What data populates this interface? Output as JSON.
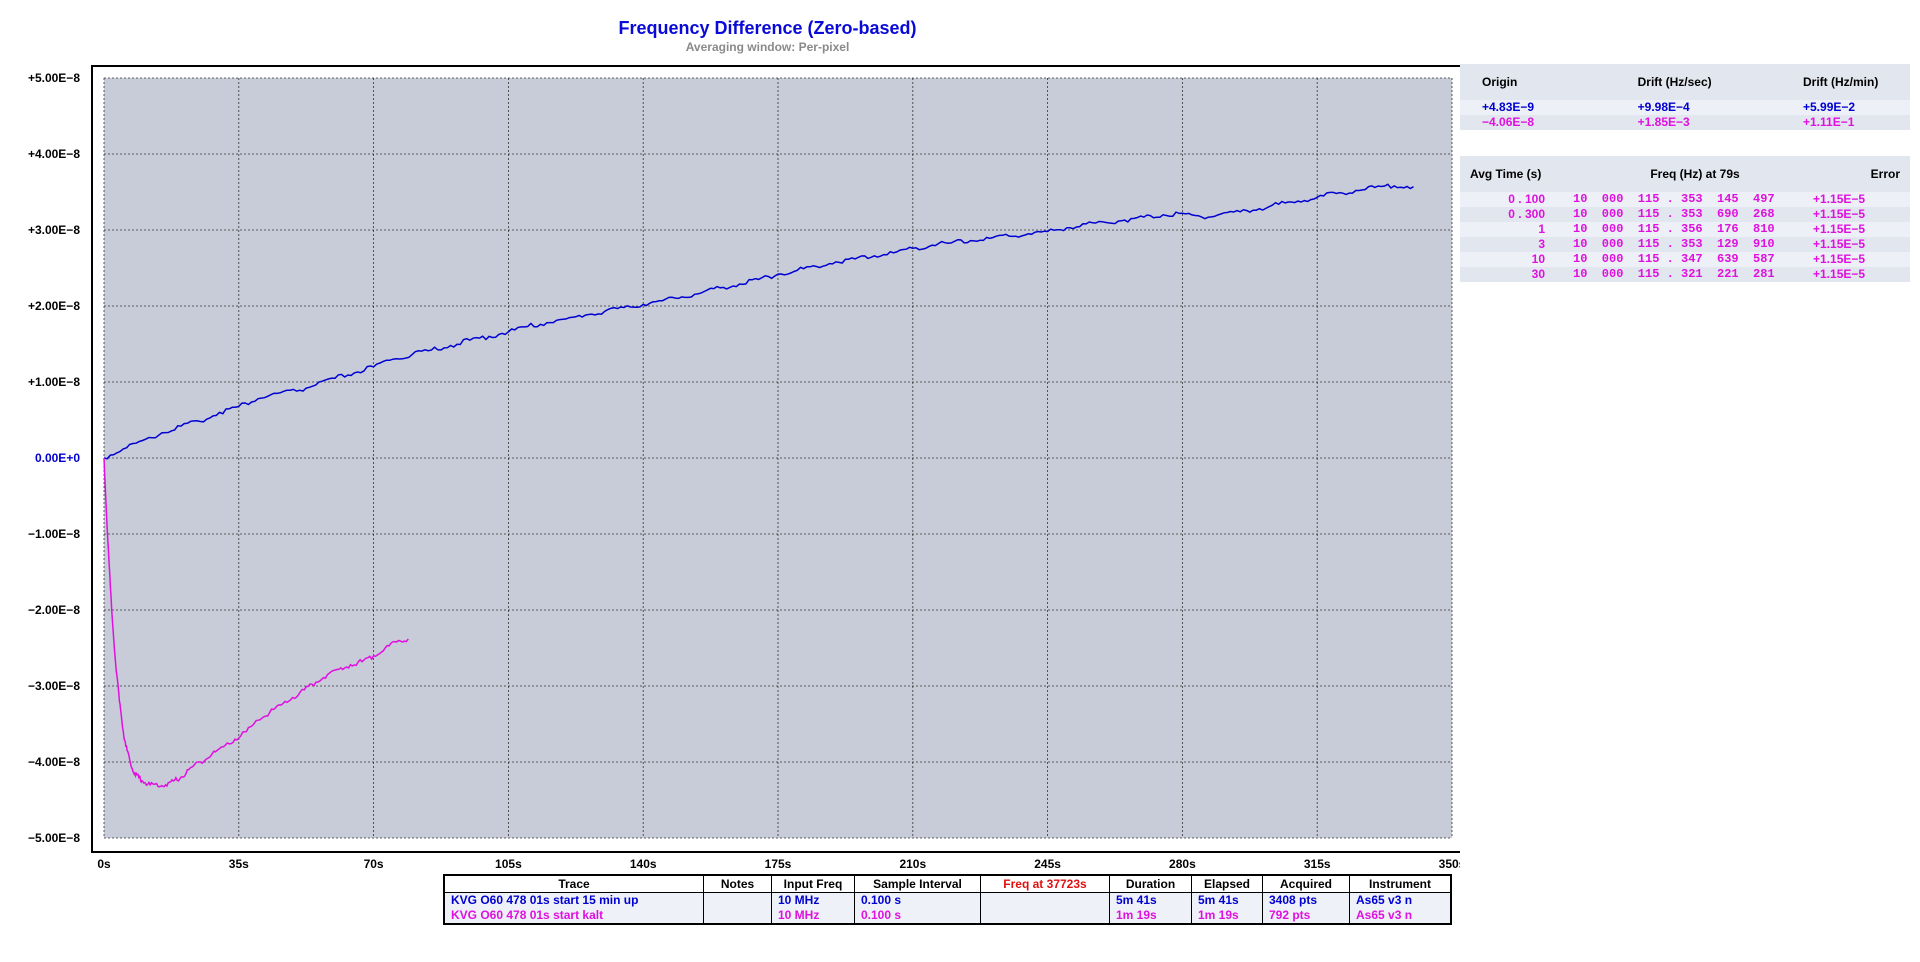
{
  "colors": {
    "series_blue": "#0000d0",
    "series_magenta": "#e010e0",
    "plot_bg": "#c8ccd8",
    "title": "#0a0ad8",
    "red_header": "#e01010"
  },
  "drift_panel": {
    "headers": [
      "Origin",
      "Drift (Hz/sec)",
      "Drift (Hz/min)"
    ],
    "rows": [
      {
        "origin": "+4.83E−9",
        "drift_sec": "+9.98E−4",
        "drift_min": "+5.99E−2",
        "color": "#0000d0"
      },
      {
        "origin": "−4.06E−8",
        "drift_sec": "+1.85E−3",
        "drift_min": "+1.11E−1",
        "color": "#e010e0"
      }
    ]
  },
  "avg_panel": {
    "headers": [
      "Avg Time (s)",
      "Freq (Hz) at 79s",
      "Error"
    ],
    "rows": [
      {
        "avg": "0 . 100",
        "freq": "10  000  115 . 353  145  497",
        "err": "+1.15E−5"
      },
      {
        "avg": "0 . 300",
        "freq": "10  000  115 . 353  690  268",
        "err": "+1.15E−5"
      },
      {
        "avg": "1",
        "freq": "10  000  115 . 356  176  810",
        "err": "+1.15E−5"
      },
      {
        "avg": "3",
        "freq": "10  000  115 . 353  129  910",
        "err": "+1.15E−5"
      },
      {
        "avg": "10",
        "freq": "10  000  115 . 347  639  587",
        "err": "+1.15E−5"
      },
      {
        "avg": "30",
        "freq": "10  000  115 . 321  221  281",
        "err": "+1.15E−5"
      }
    ]
  },
  "trace_table": {
    "headers": [
      "Trace",
      "Notes",
      "Input Freq",
      "Sample Interval",
      "Freq at 37723s",
      "Duration",
      "Elapsed",
      "Acquired",
      "Instrument"
    ],
    "rows": [
      {
        "color": "#0000d0",
        "trace": "KVG O60 478 01s start 15 min up",
        "notes": "",
        "input_freq": "10 MHz",
        "sample_interval": "0.100 s",
        "freq_at": "",
        "duration": "5m 41s",
        "elapsed": "5m 41s",
        "acquired": "3408 pts",
        "instrument": "As65 v3 n"
      },
      {
        "color": "#e010e0",
        "trace": "KVG O60 478 01s start kalt",
        "notes": "",
        "input_freq": "10 MHz",
        "sample_interval": "0.100 s",
        "freq_at": "",
        "duration": "1m 19s",
        "elapsed": "1m 19s",
        "acquired": "792 pts",
        "instrument": "As65 v3 n"
      }
    ]
  },
  "chart_data": {
    "type": "line",
    "title": "Frequency Difference (Zero-based)",
    "subtitle": "Averaging window: Per-pixel",
    "xlabel": "",
    "ylabel": "",
    "xlim": [
      0,
      350
    ],
    "ylim": [
      -5e-08,
      5e-08
    ],
    "grid": true,
    "xticks": [
      0,
      35,
      70,
      105,
      140,
      175,
      210,
      245,
      280,
      315,
      350
    ],
    "xtick_labels": [
      "0s",
      "35s",
      "70s",
      "105s",
      "140s",
      "175s",
      "210s",
      "245s",
      "280s",
      "315s",
      "350s"
    ],
    "yticks": [
      5e-08,
      4e-08,
      3e-08,
      2e-08,
      1e-08,
      0,
      -1e-08,
      -2e-08,
      -3e-08,
      -4e-08,
      -5e-08
    ],
    "ytick_labels": [
      "+5.00E−8",
      "+4.00E−8",
      "+3.00E−8",
      "+2.00E−8",
      "+1.00E−8",
      "0.00E+0",
      "−1.00E−8",
      "−2.00E−8",
      "−3.00E−8",
      "−4.00E−8",
      "−5.00E−8"
    ],
    "series": [
      {
        "name": "KVG O60 478 01s start 15 min up",
        "color": "#0000d0",
        "x": [
          0,
          5,
          10,
          15,
          20,
          25,
          30,
          35,
          40,
          45,
          50,
          55,
          60,
          65,
          70,
          75,
          80,
          85,
          90,
          95,
          100,
          105,
          110,
          115,
          120,
          125,
          130,
          135,
          140,
          145,
          150,
          155,
          160,
          165,
          170,
          175,
          180,
          185,
          190,
          195,
          200,
          205,
          210,
          215,
          220,
          225,
          230,
          235,
          240,
          245,
          250,
          255,
          260,
          265,
          270,
          275,
          280,
          285,
          290,
          295,
          300,
          305,
          310,
          315,
          320,
          325,
          330,
          335,
          340
        ],
        "y": [
          0,
          1.2e-09,
          2.3e-09,
          3.3e-09,
          4.2e-09,
          4.8e-09,
          6e-09,
          6.8e-09,
          7.8e-09,
          8.5e-09,
          8.8e-09,
          9.6e-09,
          1.05e-08,
          1.12e-08,
          1.2e-08,
          1.3e-08,
          1.36e-08,
          1.42e-08,
          1.48e-08,
          1.55e-08,
          1.6e-08,
          1.66e-08,
          1.73e-08,
          1.78e-08,
          1.83e-08,
          1.88e-08,
          1.93e-08,
          1.98e-08,
          2.02e-08,
          2.07e-08,
          2.12e-08,
          2.17e-08,
          2.24e-08,
          2.29e-08,
          2.35e-08,
          2.42e-08,
          2.47e-08,
          2.52e-08,
          2.58e-08,
          2.62e-08,
          2.66e-08,
          2.7e-08,
          2.76e-08,
          2.8e-08,
          2.83e-08,
          2.86e-08,
          2.89e-08,
          2.92e-08,
          2.95e-08,
          2.98e-08,
          3.03e-08,
          3.08e-08,
          3.1e-08,
          3.13e-08,
          3.17e-08,
          3.2e-08,
          3.22e-08,
          3.17e-08,
          3.21e-08,
          3.24e-08,
          3.28e-08,
          3.34e-08,
          3.38e-08,
          3.43e-08,
          3.48e-08,
          3.52e-08,
          3.56e-08,
          3.58e-08,
          3.57e-08
        ]
      },
      {
        "name": "KVG O60 478 01s start kalt",
        "color": "#e010e0",
        "x": [
          0,
          1,
          2,
          3,
          4,
          5,
          6,
          7,
          8,
          9,
          10,
          12,
          14,
          16,
          18,
          20,
          22,
          25,
          28,
          31,
          34,
          37,
          40,
          43,
          46,
          49,
          52,
          55,
          58,
          61,
          64,
          67,
          70,
          73,
          76,
          79
        ],
        "y": [
          0,
          -1.1e-08,
          -2e-08,
          -2.7e-08,
          -3.2e-08,
          -3.6e-08,
          -3.85e-08,
          -4.05e-08,
          -4.15e-08,
          -4.2e-08,
          -4.25e-08,
          -4.3e-08,
          -4.32e-08,
          -4.3e-08,
          -4.25e-08,
          -4.2e-08,
          -4.1e-08,
          -4e-08,
          -3.9e-08,
          -3.8e-08,
          -3.7e-08,
          -3.6e-08,
          -3.45e-08,
          -3.35e-08,
          -3.25e-08,
          -3.15e-08,
          -3.05e-08,
          -2.95e-08,
          -2.85e-08,
          -2.78e-08,
          -2.72e-08,
          -2.68e-08,
          -2.6e-08,
          -2.5e-08,
          -2.42e-08,
          -2.38e-08
        ]
      }
    ]
  }
}
